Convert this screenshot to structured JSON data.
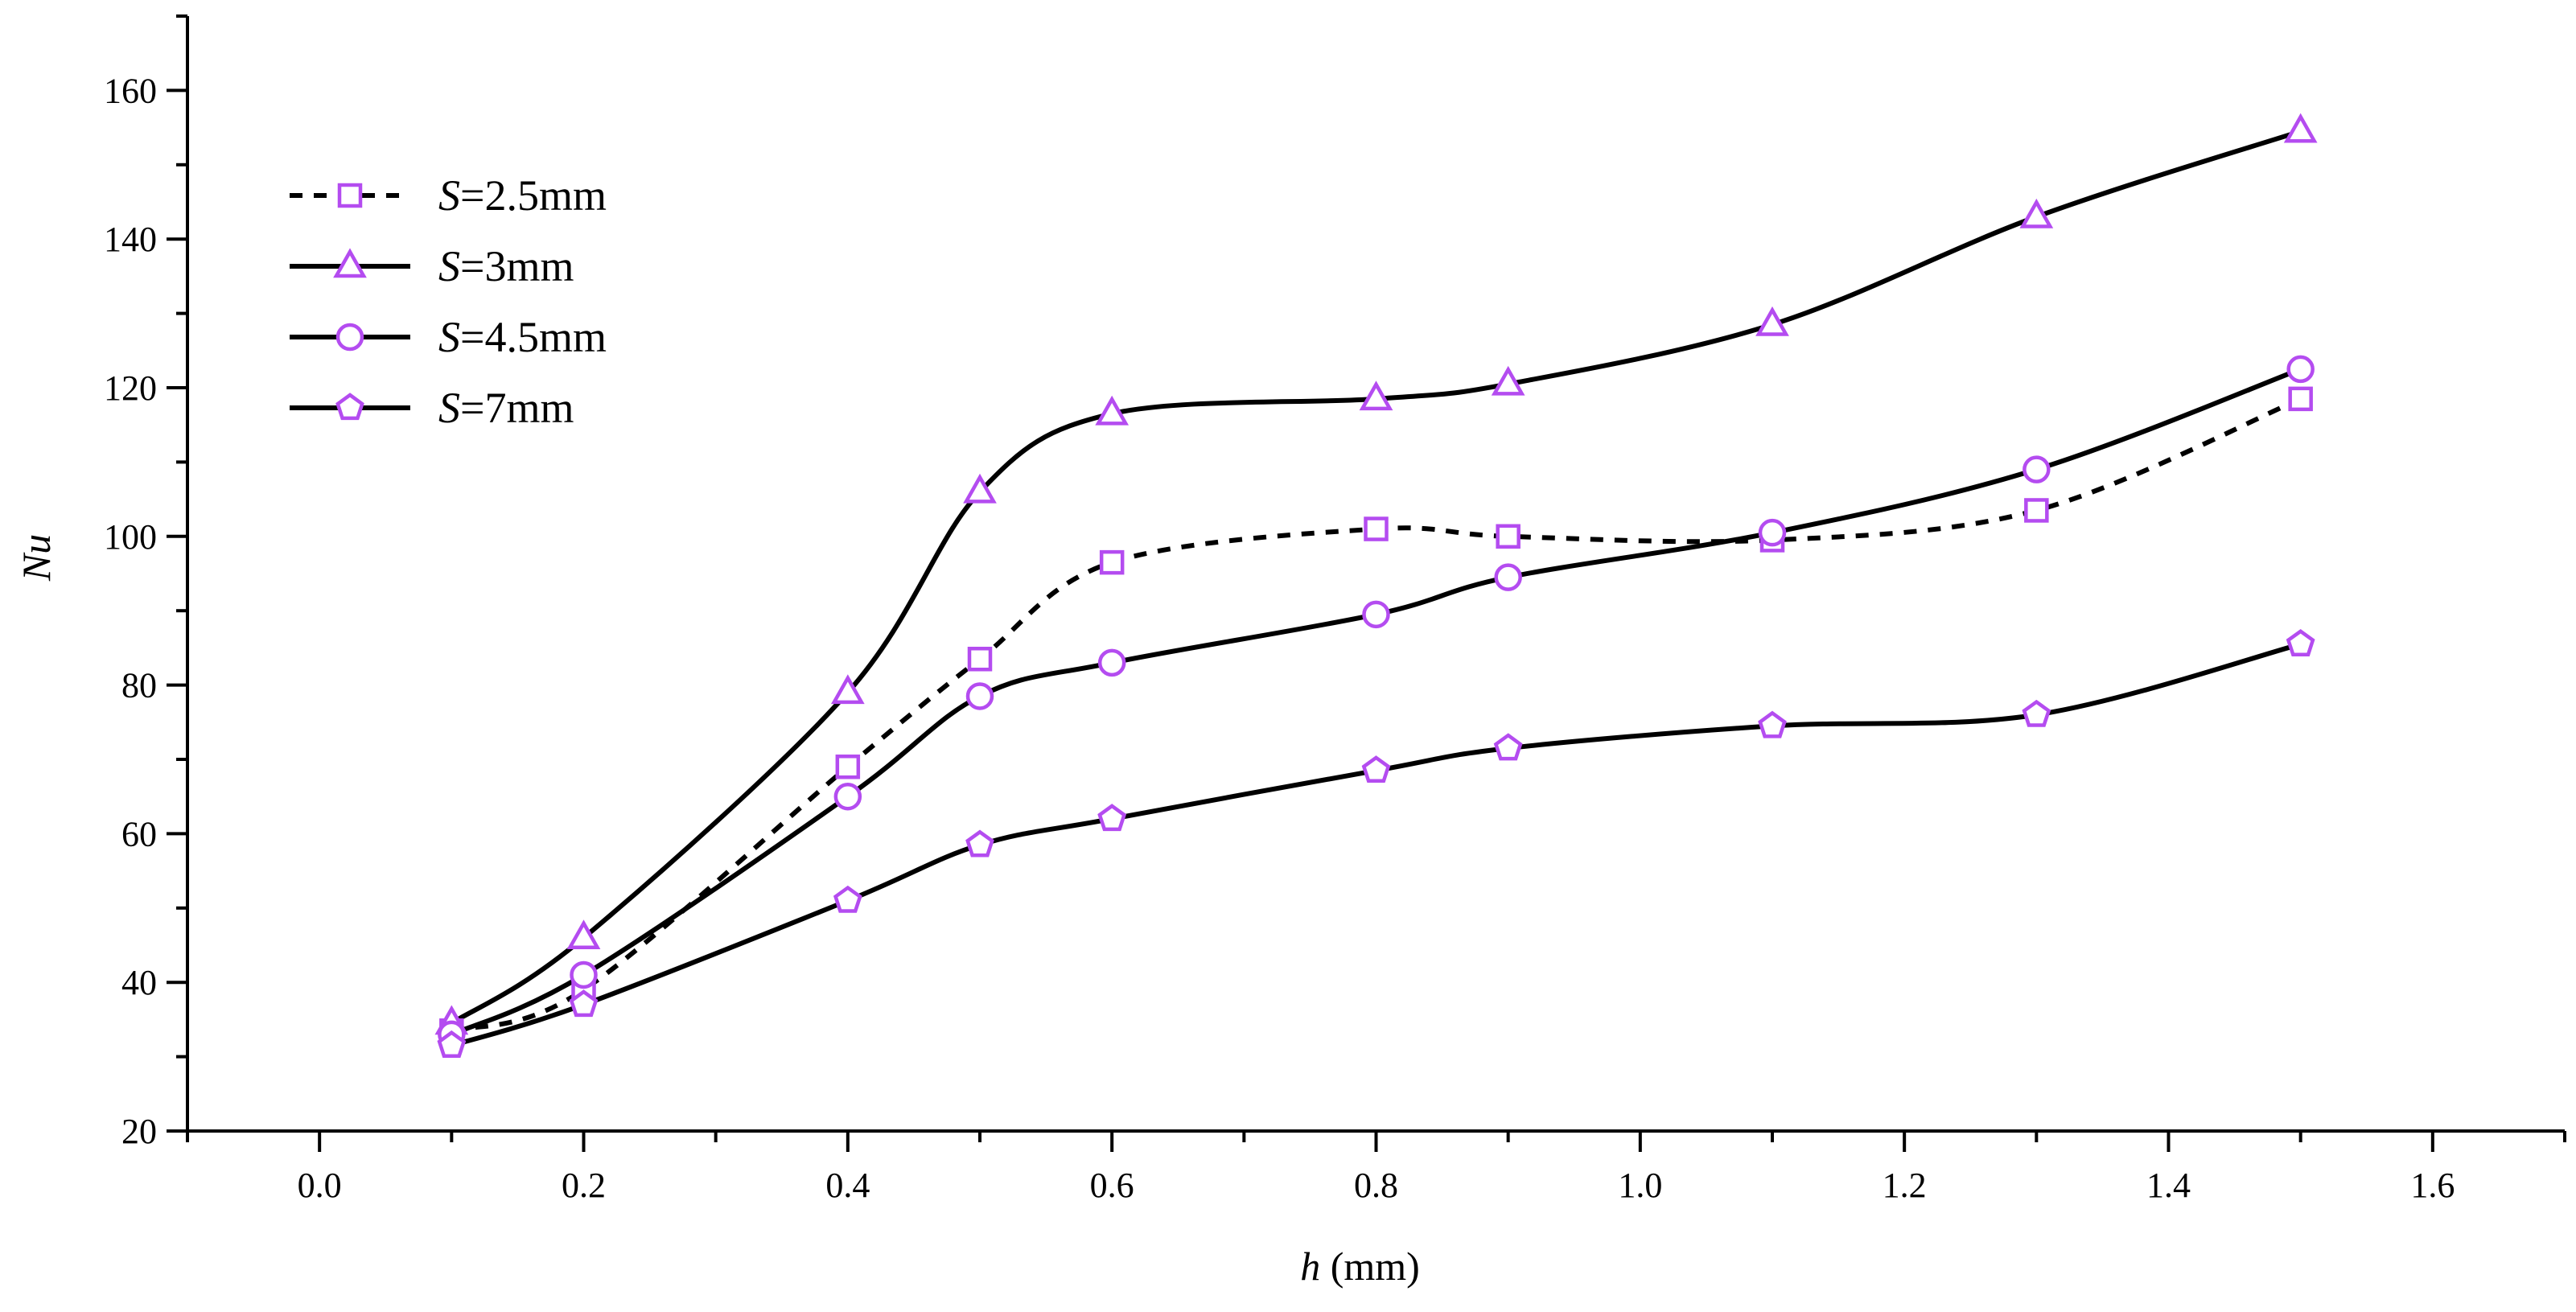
{
  "chart_data": {
    "type": "line",
    "title": "",
    "xlabel": {
      "var": "h",
      "unit": " (mm)"
    },
    "ylabel": "Nu",
    "xlim": [
      -0.1,
      1.7
    ],
    "ylim": [
      20,
      170
    ],
    "xticks": [
      0.0,
      0.2,
      0.4,
      0.6,
      0.8,
      1.0,
      1.2,
      1.4,
      1.6
    ],
    "xtick_labels": [
      "0.0",
      "0.2",
      "0.4",
      "0.6",
      "0.8",
      "1.0",
      "1.2",
      "1.4",
      "1.6"
    ],
    "yticks": [
      20,
      40,
      60,
      80,
      100,
      120,
      140,
      160
    ],
    "ytick_labels": [
      "20",
      "40",
      "60",
      "80",
      "100",
      "120",
      "140",
      "160"
    ],
    "grid": false,
    "legend_position": "top-left",
    "marker_color": "#b44cf0",
    "line_color": "#000000",
    "x": [
      0.1,
      0.2,
      0.4,
      0.5,
      0.6,
      0.8,
      0.9,
      1.1,
      1.3,
      1.5
    ],
    "series": [
      {
        "name": "S=2.5mm",
        "label_var": "S",
        "label_rest": "=2.5mm",
        "marker": "square",
        "dash": "dashed",
        "values": [
          33.5,
          39,
          69,
          83.5,
          96.5,
          101,
          100,
          99.5,
          103.5,
          118.5
        ]
      },
      {
        "name": "S=3mm",
        "label_var": "S",
        "label_rest": "=3mm",
        "marker": "triangle",
        "dash": "solid",
        "values": [
          34.5,
          46,
          79,
          106,
          116.5,
          118.5,
          120.5,
          128.5,
          143,
          154.5
        ]
      },
      {
        "name": "S=4.5mm",
        "label_var": "S",
        "label_rest": "=4.5mm",
        "marker": "circle",
        "dash": "solid",
        "values": [
          33,
          41,
          65,
          78.5,
          83,
          89.5,
          94.5,
          100.5,
          109,
          122.5
        ]
      },
      {
        "name": "S=7mm",
        "label_var": "S",
        "label_rest": "=7mm",
        "marker": "pentagon",
        "dash": "solid",
        "values": [
          31.5,
          37,
          51,
          58.5,
          62,
          68.5,
          71.5,
          74.5,
          76,
          85.5
        ]
      }
    ]
  }
}
